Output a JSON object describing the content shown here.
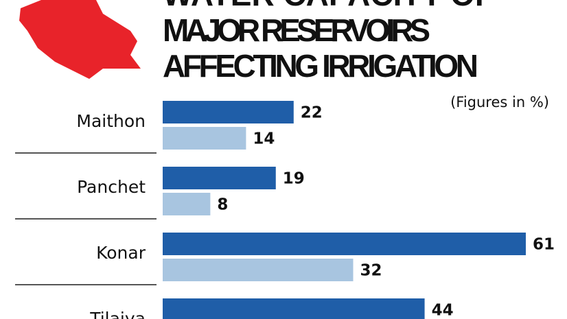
{
  "chart_data": {
    "type": "bar",
    "orientation": "horizontal",
    "title": [
      "WATER CAPACITY OF",
      "MAJOR RESERVOIRS",
      "AFFECTING IRRIGATION"
    ],
    "subtitle": "(Figures in %)",
    "categories": [
      "Maithon",
      "Panchet",
      "Konar",
      "Tilaiya"
    ],
    "series": [
      {
        "color": "#1f5ea8",
        "values": [
          22,
          19,
          61,
          44
        ]
      },
      {
        "color": "#a8c5e0",
        "values": [
          14,
          8,
          32,
          null
        ]
      }
    ],
    "xlim": [
      0,
      61
    ]
  }
}
